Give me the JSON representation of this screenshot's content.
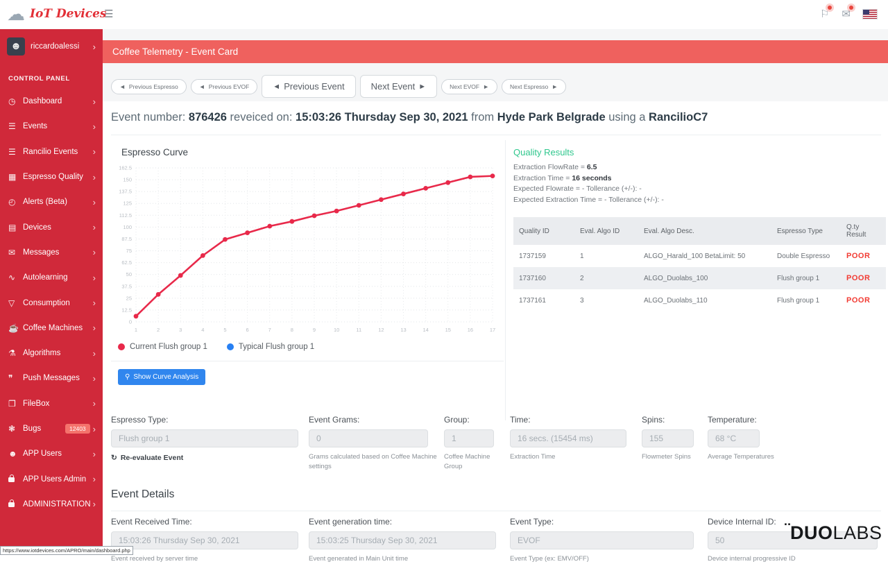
{
  "brand": {
    "name": "IoT Devices"
  },
  "topbar": {
    "hamburger": "☰",
    "flag_icon": "⚐",
    "mail_icon": "✉"
  },
  "user": {
    "name": "riccardoalessi"
  },
  "sidebar": {
    "section_label": "CONTROL PANEL",
    "items": [
      {
        "name": "dashboard",
        "label": "Dashboard",
        "icon": "◷"
      },
      {
        "name": "events",
        "label": "Events",
        "icon": "☰"
      },
      {
        "name": "rancilio-events",
        "label": "Rancilio Events",
        "icon": "☰"
      },
      {
        "name": "espresso-quality",
        "label": "Espresso Quality",
        "icon": "▦"
      },
      {
        "name": "alerts-beta",
        "label": "Alerts (Beta)",
        "icon": "◴"
      },
      {
        "name": "devices",
        "label": "Devices",
        "icon": "▤"
      },
      {
        "name": "messages",
        "label": "Messages",
        "icon": "✉"
      },
      {
        "name": "autolearning",
        "label": "Autolearning",
        "icon": "∿"
      },
      {
        "name": "consumption",
        "label": "Consumption",
        "icon": "▽"
      },
      {
        "name": "coffee-machines",
        "label": "Coffee Machines",
        "icon": "☕"
      },
      {
        "name": "algorithms",
        "label": "Algorithms",
        "icon": "⚗"
      },
      {
        "name": "push-messages",
        "label": "Push Messages",
        "icon": "❞"
      },
      {
        "name": "filebox",
        "label": "FileBox",
        "icon": "❒"
      },
      {
        "name": "bugs",
        "label": "Bugs",
        "icon": "❃",
        "badge": "12403"
      },
      {
        "name": "app-users",
        "label": "APP Users",
        "icon": "☻"
      },
      {
        "name": "app-users-admin",
        "label": "APP Users Admin",
        "icon": "lock"
      },
      {
        "name": "administration",
        "label": "ADMINISTRATION",
        "icon": "lock"
      }
    ],
    "status_url": "https://www.iotdevices.com/APRO/main/dashboard.php"
  },
  "header": {
    "title": "Coffee Telemetry - Event Card"
  },
  "nav_buttons": [
    {
      "label": "Previous Espresso",
      "arrow": "left",
      "size": "small"
    },
    {
      "label": "Previous EVOF",
      "arrow": "left",
      "size": "small"
    },
    {
      "label": "Previous Event",
      "arrow": "left",
      "size": "large"
    },
    {
      "label": "Next Event",
      "arrow": "right",
      "size": "large"
    },
    {
      "label": "Next EVOF",
      "arrow": "right",
      "size": "small"
    },
    {
      "label": "Next Espresso",
      "arrow": "right",
      "size": "small"
    }
  ],
  "event_line": {
    "segments": [
      {
        "text": "Event number: ",
        "bold": false
      },
      {
        "text": "876426",
        "bold": true
      },
      {
        "text": " reveiced on: ",
        "bold": false
      },
      {
        "text": "15:03:26 Thursday Sep 30, 2021",
        "bold": true
      },
      {
        "text": " from ",
        "bold": false
      },
      {
        "text": "Hyde Park Belgrade",
        "bold": true
      },
      {
        "text": " using a ",
        "bold": false
      },
      {
        "text": "RancilioC7",
        "bold": true
      }
    ]
  },
  "chart_data": {
    "type": "line",
    "title": "Espresso Curve",
    "x": [
      1,
      2,
      3,
      4,
      5,
      6,
      7,
      8,
      9,
      10,
      11,
      12,
      13,
      14,
      15,
      16,
      17
    ],
    "series": [
      {
        "name": "Current Flush group 1",
        "color": "#e8294a",
        "values": [
          6,
          29,
          49,
          70,
          87,
          94,
          101,
          106,
          112,
          117,
          123,
          129,
          135,
          141,
          147,
          153,
          154
        ]
      },
      {
        "name": "Typical Flush group 1",
        "color": "#2780f3",
        "values": []
      }
    ],
    "xlabel": "",
    "ylabel": "",
    "ylim": [
      0,
      162.5
    ],
    "ytick_step": 12.5,
    "grid": true,
    "legend_position": "bottom"
  },
  "curve_button": {
    "label": "Show Curve Analysis",
    "icon": "⚲"
  },
  "quality": {
    "title": "Quality Results",
    "lines": [
      {
        "label": "Extraction FlowRate = ",
        "value": "6.5"
      },
      {
        "label": "Extraction Time = ",
        "value": "16 seconds"
      },
      {
        "label": "Expected Flowrate = - Tollerance (+/-): -",
        "value": ""
      },
      {
        "label": "Expected Extraction Time = - Tollerance (+/-): -",
        "value": ""
      }
    ],
    "table": {
      "headers": [
        "Quality ID",
        "Eval. Algo ID",
        "Eval. Algo Desc.",
        "Espresso Type",
        "Q.ty Result"
      ],
      "rows": [
        [
          "1737159",
          "1",
          "ALGO_Harald_100 BetaLimit: 50",
          "Double Espresso",
          "POOR"
        ],
        [
          "1737160",
          "2",
          "ALGO_Duolabs_100",
          "Flush group 1",
          "POOR"
        ],
        [
          "1737161",
          "3",
          "ALGO_Duolabs_110",
          "Flush group 1",
          "POOR"
        ]
      ]
    }
  },
  "fields": {
    "primary": [
      {
        "label": "Espresso Type:",
        "value": "Flush group 1",
        "help": "",
        "link": "Re-evaluate Event",
        "link_icon": "↻"
      },
      {
        "label": "Event Grams:",
        "value": "0",
        "help": "Grams calculated based on Coffee Machine settings"
      },
      {
        "label": "Group:",
        "value": "1",
        "help": "Coffee Machine Group"
      },
      {
        "label": "Time:",
        "value": "16 secs. (15454 ms)",
        "help": "Extraction Time"
      },
      {
        "label": "Spins:",
        "value": "155",
        "help": "Flowmeter Spins"
      },
      {
        "label": "Temperature:",
        "value": "68 °C",
        "help": "Average Temperatures"
      }
    ],
    "details_title": "Event Details",
    "event_details": [
      {
        "label": "Event Received Time:",
        "value": "15:03:26 Thursday Sep 30, 2021",
        "help": "Event received by server time"
      },
      {
        "label": "Event generation time:",
        "value": "15:03:25 Thursday Sep 30, 2021",
        "help": "Event generated in Main Unit time"
      },
      {
        "label": "Event Type:",
        "value": "EVOF",
        "help": "Event Type (ex: EMV/OFF)"
      },
      {
        "label": "Device Internal ID:",
        "value": "50",
        "help": "Device internal progressive ID"
      }
    ]
  },
  "footer_logo": {
    "dots": "¨",
    "bold": "DUO",
    "light": "LABS"
  }
}
